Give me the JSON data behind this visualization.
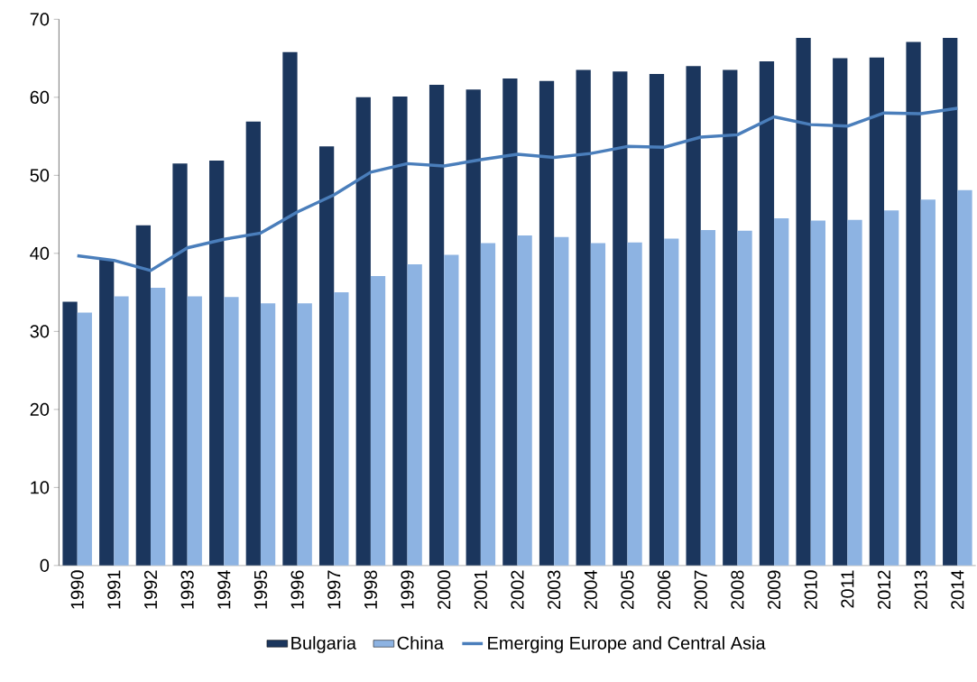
{
  "chart_data": {
    "type": "bar",
    "categories": [
      "1990",
      "1991",
      "1992",
      "1993",
      "1994",
      "1995",
      "1996",
      "1997",
      "1998",
      "1999",
      "2000",
      "2001",
      "2002",
      "2003",
      "2004",
      "2005",
      "2006",
      "2007",
      "2008",
      "2009",
      "2010",
      "2011",
      "2012",
      "2013",
      "2014"
    ],
    "series": [
      {
        "name": "Bulgaria",
        "color": "#1b365d",
        "values": [
          33.8,
          39.2,
          43.6,
          51.5,
          51.9,
          56.9,
          65.8,
          53.7,
          60.0,
          60.1,
          61.6,
          61.0,
          62.4,
          62.1,
          63.5,
          63.3,
          63.0,
          64.0,
          63.5,
          64.6,
          67.6,
          65.0,
          65.1,
          67.1,
          67.6
        ]
      },
      {
        "name": "China",
        "color": "#8db3e2",
        "values": [
          32.4,
          34.5,
          35.6,
          34.5,
          34.4,
          33.6,
          33.6,
          35.0,
          37.1,
          38.6,
          39.8,
          41.3,
          42.3,
          42.1,
          41.3,
          41.4,
          41.9,
          43.0,
          42.9,
          44.5,
          44.2,
          44.3,
          45.5,
          46.9,
          48.1
        ]
      },
      {
        "name": "Emerging Europe and Central Asia",
        "type": "line",
        "color": "#4a7ebb",
        "values": [
          39.7,
          39.1,
          37.8,
          40.7,
          41.8,
          42.6,
          45.3,
          47.5,
          50.4,
          51.5,
          51.2,
          52.0,
          52.7,
          52.3,
          52.8,
          53.7,
          53.6,
          54.9,
          55.2,
          57.5,
          56.5,
          56.3,
          58.0,
          57.9,
          58.6
        ]
      }
    ],
    "ylim": [
      0,
      70
    ],
    "yticks": [
      0,
      10,
      20,
      30,
      40,
      50,
      60,
      70
    ],
    "grid": false,
    "legend": "bottom"
  }
}
